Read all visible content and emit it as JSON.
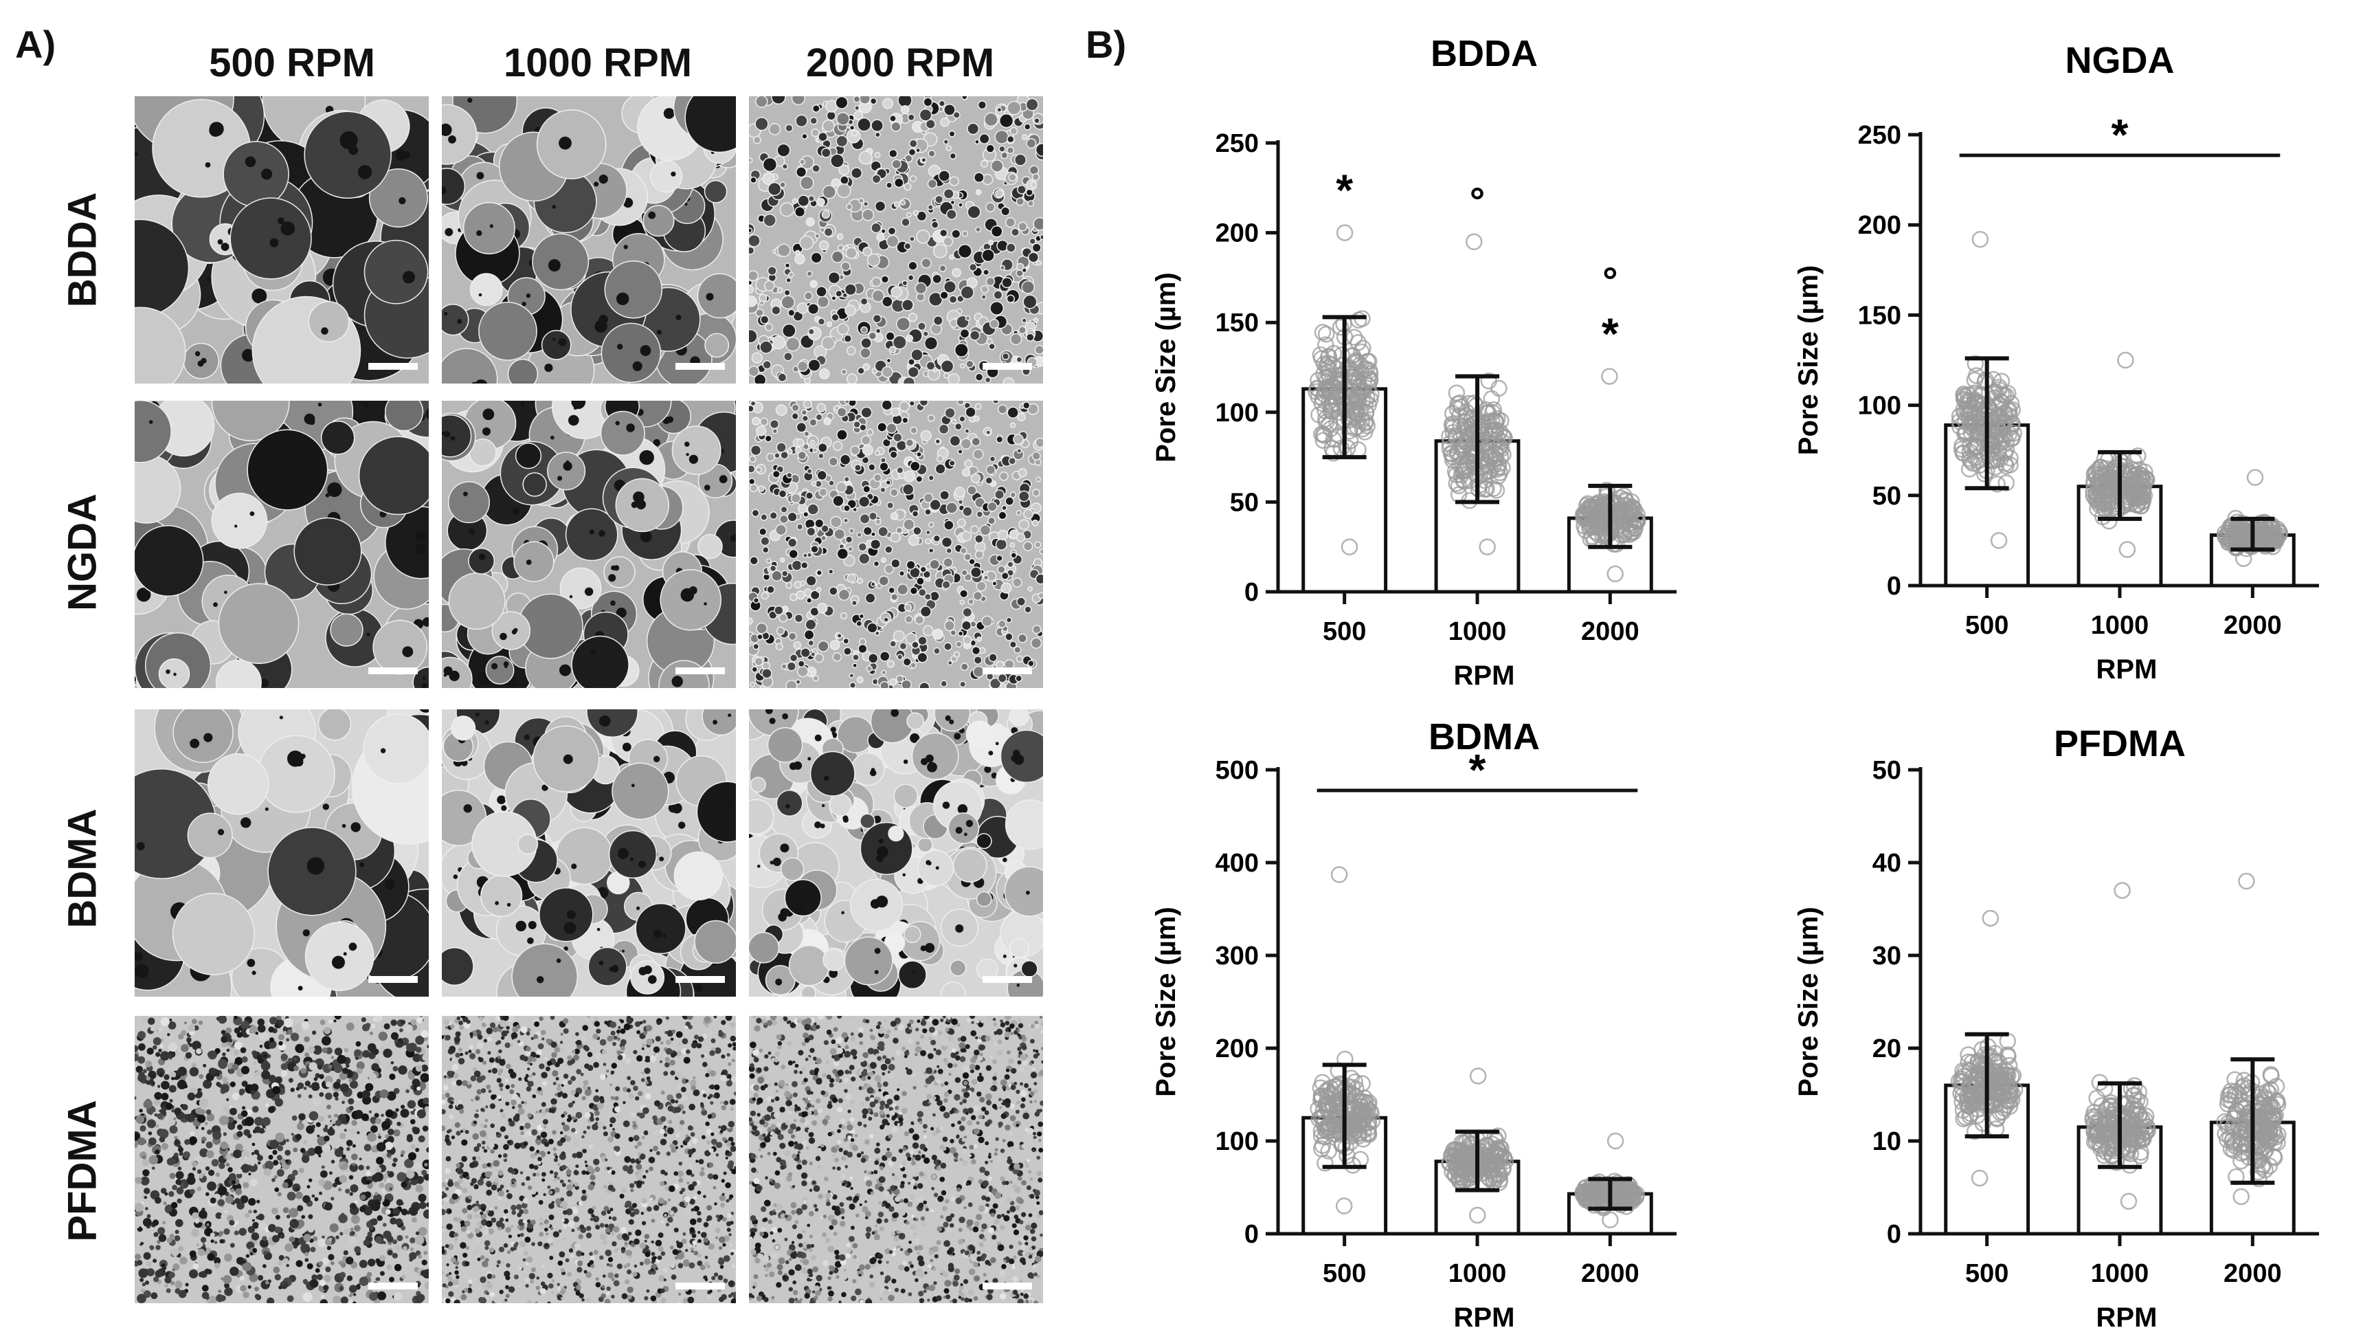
{
  "panel_a": {
    "label": "A)",
    "columns": [
      "500 RPM",
      "1000 RPM",
      "2000 RPM"
    ],
    "rows": [
      "BDDA",
      "NGDA",
      "BDMA",
      "PFDMA"
    ]
  },
  "panel_b": {
    "label": "B)"
  },
  "chart_data": [
    {
      "type": "bar",
      "title": "BDDA",
      "xlabel": "RPM",
      "ylabel": "Pore Size (µm)",
      "categories": [
        "500",
        "1000",
        "2000"
      ],
      "values": [
        113,
        84,
        41
      ],
      "error_low": [
        75,
        50,
        25
      ],
      "error_high": [
        153,
        120,
        59
      ],
      "ylim": [
        0,
        250
      ],
      "yticks": [
        "0",
        "50",
        "100",
        "150",
        "200",
        "250"
      ],
      "point_range": [
        [
          25,
          200
        ],
        [
          25,
          195
        ],
        [
          10,
          120
        ]
      ],
      "markers": [
        {
          "category": "500",
          "symbol": "*"
        },
        {
          "category": "1000",
          "symbol": "°"
        },
        {
          "category": "2000",
          "symbol": "°"
        },
        {
          "category": "2000",
          "symbol": "*"
        }
      ],
      "bracket": null
    },
    {
      "type": "bar",
      "title": "NGDA",
      "xlabel": "RPM",
      "ylabel": "Pore Size (µm)",
      "categories": [
        "500",
        "1000",
        "2000"
      ],
      "values": [
        89,
        55,
        28
      ],
      "error_low": [
        54,
        37,
        20
      ],
      "error_high": [
        126,
        74,
        37
      ],
      "ylim": [
        0,
        250
      ],
      "yticks": [
        "0",
        "50",
        "100",
        "150",
        "200",
        "250"
      ],
      "point_range": [
        [
          25,
          192
        ],
        [
          20,
          125
        ],
        [
          15,
          60
        ]
      ],
      "markers": [],
      "bracket": {
        "from": "500",
        "to": "2000",
        "symbol": "*"
      }
    },
    {
      "type": "bar",
      "title": "BDMA",
      "xlabel": "RPM",
      "ylabel": "Pore Size (µm)",
      "categories": [
        "500",
        "1000",
        "2000"
      ],
      "values": [
        125,
        78,
        43
      ],
      "error_low": [
        72,
        47,
        27
      ],
      "error_high": [
        182,
        110,
        59
      ],
      "ylim": [
        0,
        500
      ],
      "yticks": [
        "0",
        "100",
        "200",
        "300",
        "400",
        "500"
      ],
      "point_range": [
        [
          30,
          387
        ],
        [
          20,
          170
        ],
        [
          15,
          100
        ]
      ],
      "markers": [],
      "bracket": {
        "from": "500",
        "to": "2000",
        "symbol": "*"
      }
    },
    {
      "type": "bar",
      "title": "PFDMA",
      "xlabel": "RPM",
      "ylabel": "Pore Size (µm)",
      "categories": [
        "500",
        "1000",
        "2000"
      ],
      "values": [
        16,
        11.5,
        12
      ],
      "error_low": [
        10.5,
        7.2,
        5.5
      ],
      "error_high": [
        21.5,
        16.2,
        18.8
      ],
      "ylim": [
        0,
        50
      ],
      "yticks": [
        "0",
        "10",
        "20",
        "30",
        "40",
        "50"
      ],
      "point_range": [
        [
          6,
          34
        ],
        [
          3.5,
          37
        ],
        [
          4,
          38
        ]
      ],
      "markers": [],
      "bracket": null
    }
  ]
}
